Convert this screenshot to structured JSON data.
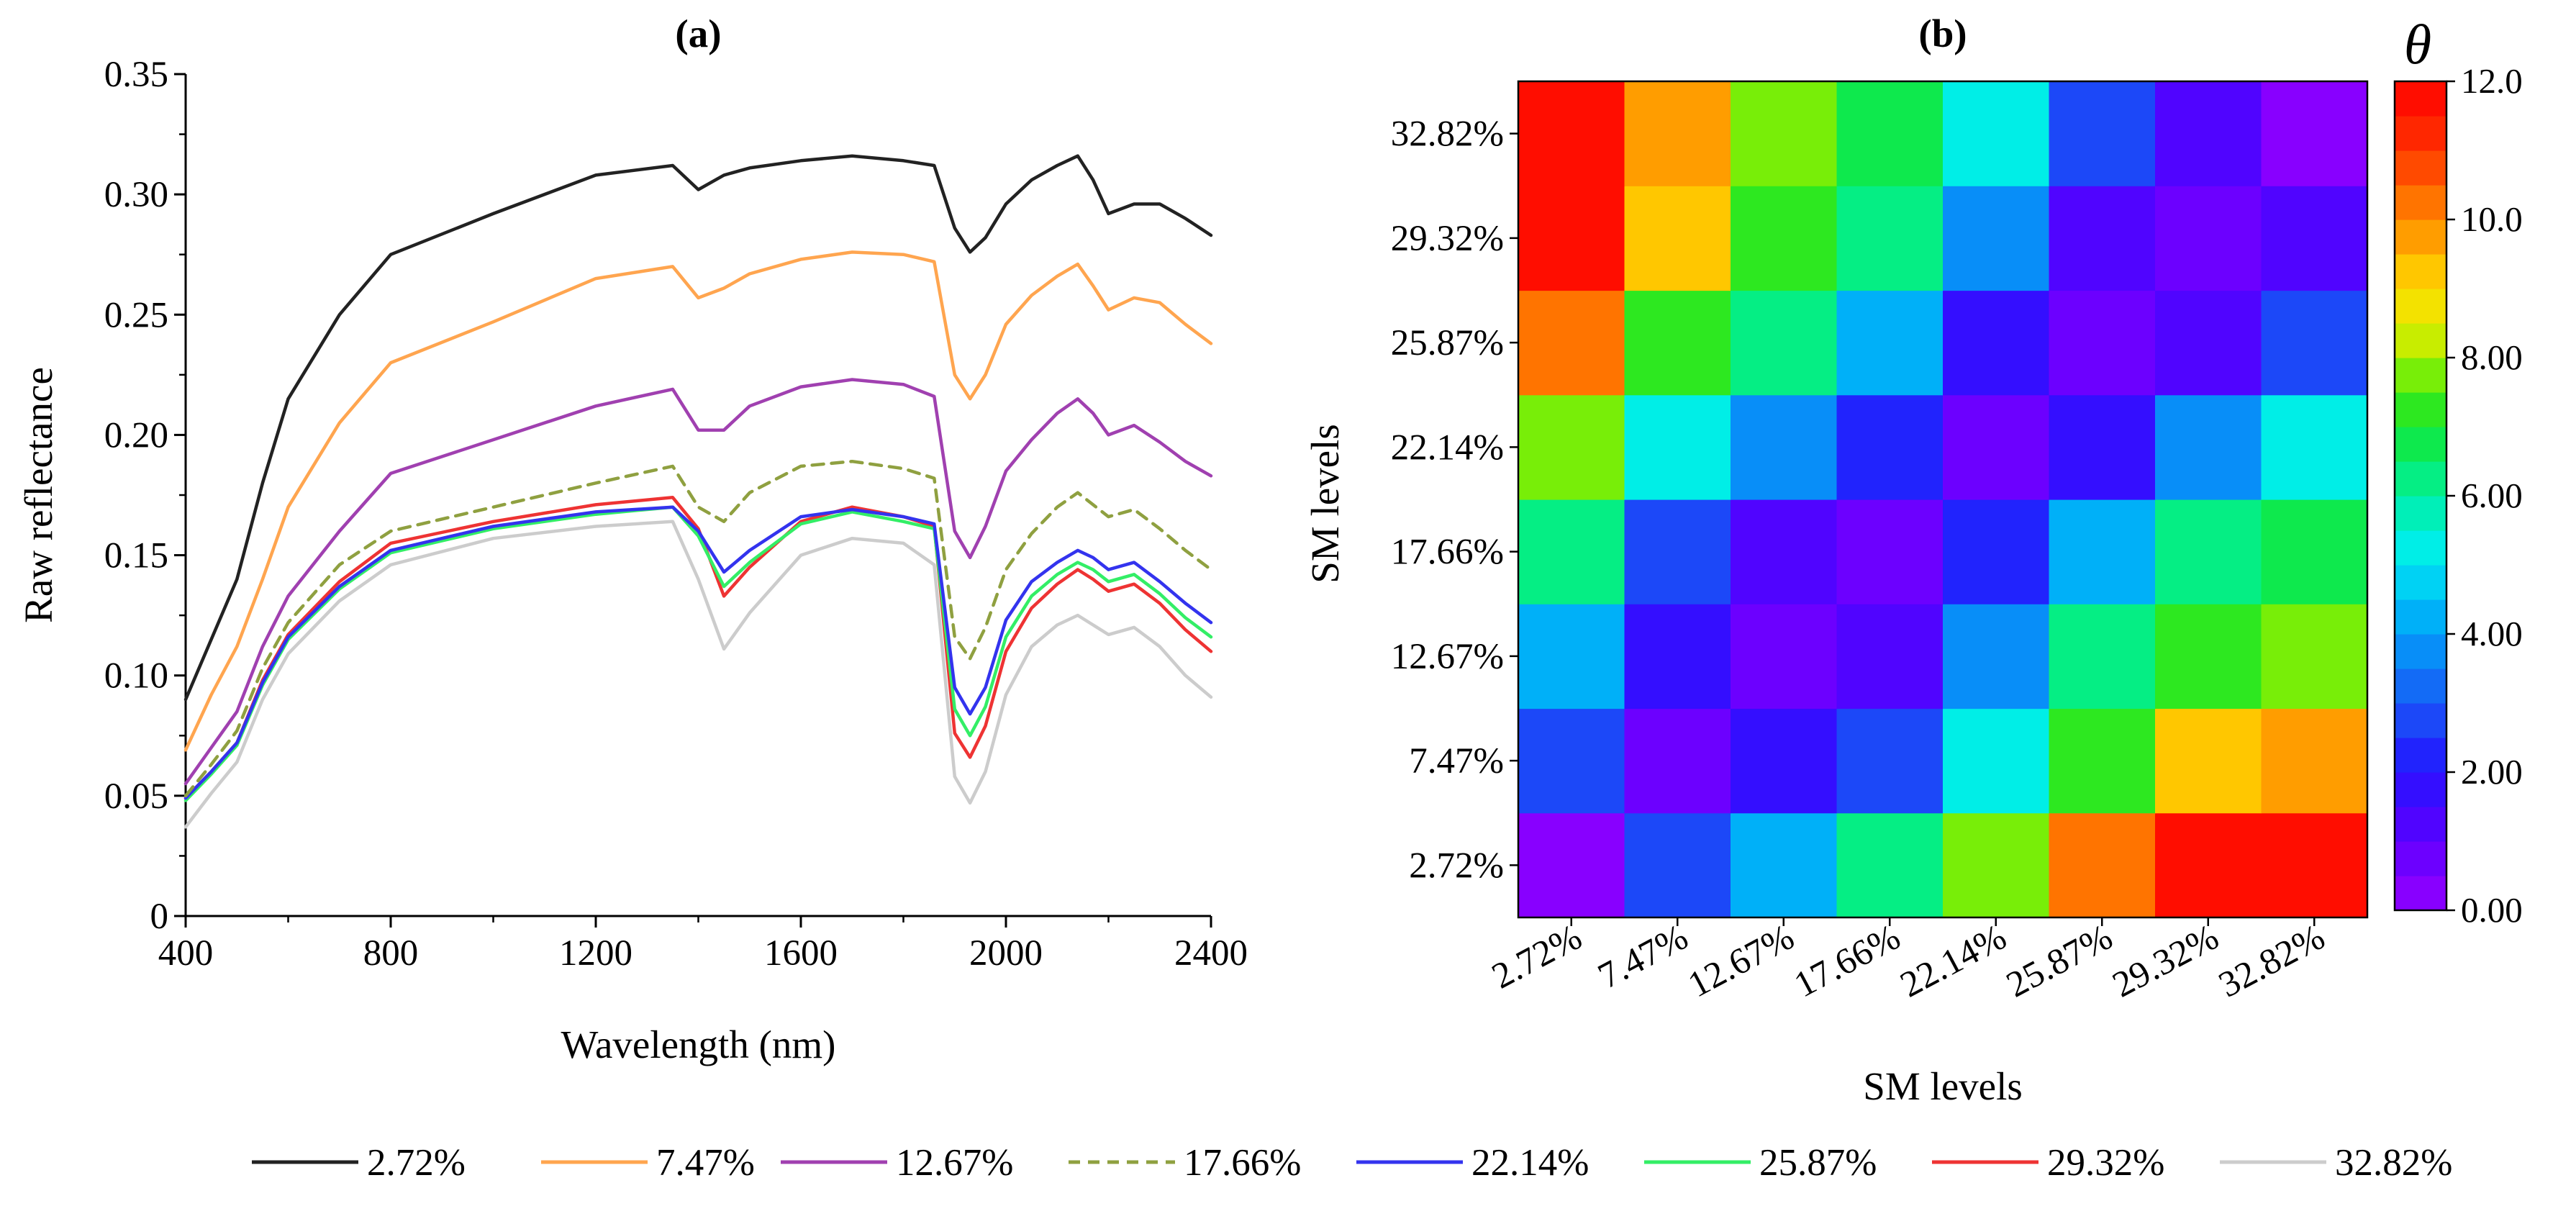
{
  "chart_data": [
    {
      "type": "line",
      "panel_label": "(a)",
      "xlabel": "Wavelength (nm)",
      "ylabel": "Raw reflectance",
      "xlim": [
        400,
        2400
      ],
      "ylim": [
        0,
        0.35
      ],
      "xticks": [
        400,
        800,
        1200,
        1600,
        2000,
        2400
      ],
      "xtick_labels": [
        "400",
        "800",
        "1200",
        "1600",
        "2000",
        "2400"
      ],
      "yticks": [
        0,
        0.05,
        0.1,
        0.15,
        0.2,
        0.25,
        0.3,
        0.35
      ],
      "ytick_labels": [
        "0",
        "0.05",
        "0.10",
        "0.15",
        "0.20",
        "0.25",
        "0.30",
        "0.35"
      ],
      "x": [
        400,
        450,
        500,
        550,
        600,
        700,
        800,
        1000,
        1200,
        1350,
        1400,
        1450,
        1500,
        1600,
        1700,
        1800,
        1860,
        1900,
        1930,
        1960,
        2000,
        2050,
        2100,
        2140,
        2170,
        2200,
        2250,
        2300,
        2350,
        2400
      ],
      "series": [
        {
          "name": "2.72%",
          "color": "#222222",
          "dash": false,
          "values": [
            0.09,
            0.115,
            0.14,
            0.18,
            0.215,
            0.25,
            0.275,
            0.292,
            0.308,
            0.312,
            0.302,
            0.308,
            0.311,
            0.314,
            0.316,
            0.314,
            0.312,
            0.286,
            0.276,
            0.282,
            0.296,
            0.306,
            0.312,
            0.316,
            0.306,
            0.292,
            0.296,
            0.296,
            0.29,
            0.283
          ]
        },
        {
          "name": "7.47%",
          "color": "#ffa54f",
          "dash": false,
          "values": [
            0.069,
            0.092,
            0.112,
            0.14,
            0.17,
            0.205,
            0.23,
            0.247,
            0.265,
            0.27,
            0.257,
            0.261,
            0.267,
            0.273,
            0.276,
            0.275,
            0.272,
            0.225,
            0.215,
            0.225,
            0.246,
            0.258,
            0.266,
            0.271,
            0.262,
            0.252,
            0.257,
            0.255,
            0.246,
            0.238
          ]
        },
        {
          "name": "12.67%",
          "color": "#a040b0",
          "dash": false,
          "values": [
            0.055,
            0.07,
            0.085,
            0.112,
            0.133,
            0.16,
            0.184,
            0.198,
            0.212,
            0.219,
            0.202,
            0.202,
            0.212,
            0.22,
            0.223,
            0.221,
            0.216,
            0.16,
            0.149,
            0.162,
            0.185,
            0.198,
            0.209,
            0.215,
            0.209,
            0.2,
            0.204,
            0.197,
            0.189,
            0.183
          ]
        },
        {
          "name": "17.66%",
          "color": "#8fa040",
          "dash": true,
          "values": [
            0.05,
            0.063,
            0.077,
            0.103,
            0.122,
            0.146,
            0.16,
            0.17,
            0.18,
            0.187,
            0.17,
            0.164,
            0.176,
            0.187,
            0.189,
            0.186,
            0.182,
            0.116,
            0.107,
            0.12,
            0.144,
            0.159,
            0.17,
            0.176,
            0.171,
            0.166,
            0.169,
            0.161,
            0.152,
            0.144
          ]
        },
        {
          "name": "22.14%",
          "color": "#3333ee",
          "dash": false,
          "values": [
            0.049,
            0.06,
            0.072,
            0.097,
            0.116,
            0.137,
            0.152,
            0.162,
            0.168,
            0.17,
            0.16,
            0.143,
            0.152,
            0.166,
            0.169,
            0.166,
            0.163,
            0.095,
            0.084,
            0.095,
            0.123,
            0.139,
            0.147,
            0.152,
            0.149,
            0.144,
            0.147,
            0.139,
            0.13,
            0.122
          ]
        },
        {
          "name": "25.87%",
          "color": "#33ee66",
          "dash": false,
          "values": [
            0.048,
            0.059,
            0.071,
            0.096,
            0.115,
            0.136,
            0.151,
            0.161,
            0.167,
            0.17,
            0.158,
            0.137,
            0.147,
            0.163,
            0.168,
            0.164,
            0.161,
            0.086,
            0.075,
            0.087,
            0.116,
            0.133,
            0.142,
            0.147,
            0.144,
            0.139,
            0.142,
            0.134,
            0.124,
            0.116
          ]
        },
        {
          "name": "29.32%",
          "color": "#ee3333",
          "dash": false,
          "values": [
            0.049,
            0.06,
            0.072,
            0.098,
            0.117,
            0.139,
            0.155,
            0.164,
            0.171,
            0.174,
            0.161,
            0.133,
            0.145,
            0.164,
            0.17,
            0.166,
            0.162,
            0.076,
            0.066,
            0.079,
            0.11,
            0.128,
            0.138,
            0.144,
            0.14,
            0.135,
            0.138,
            0.13,
            0.119,
            0.11
          ]
        },
        {
          "name": "32.82%",
          "color": "#cccccc",
          "dash": false,
          "values": [
            0.037,
            0.051,
            0.064,
            0.09,
            0.109,
            0.131,
            0.146,
            0.157,
            0.162,
            0.164,
            0.14,
            0.111,
            0.126,
            0.15,
            0.157,
            0.155,
            0.146,
            0.058,
            0.047,
            0.06,
            0.092,
            0.112,
            0.121,
            0.125,
            0.121,
            0.117,
            0.12,
            0.112,
            0.1,
            0.091
          ]
        }
      ]
    },
    {
      "type": "heatmap",
      "panel_label": "(b)",
      "xlabel": "SM levels",
      "ylabel": "SM levels",
      "x_categories": [
        "2.72%",
        "7.47%",
        "12.67%",
        "17.66%",
        "22.14%",
        "25.87%",
        "29.32%",
        "32.82%"
      ],
      "y_categories": [
        "2.72%",
        "7.47%",
        "12.67%",
        "17.66%",
        "22.14%",
        "25.87%",
        "29.32%",
        "32.82%"
      ],
      "values_note": "rows listed bottom (2.72%) to top (32.82%), columns left (2.72%) to right (32.82%)",
      "values": [
        [
          0.3,
          2.5,
          4.3,
          6.0,
          7.9,
          10.2,
          11.6,
          11.9
        ],
        [
          2.5,
          0.7,
          1.5,
          2.8,
          5.3,
          7.0,
          9.1,
          9.8
        ],
        [
          4.3,
          1.5,
          0.8,
          1.4,
          3.6,
          6.0,
          7.2,
          7.8
        ],
        [
          6.0,
          2.8,
          1.4,
          0.6,
          2.2,
          4.0,
          6.0,
          6.9
        ],
        [
          7.9,
          5.3,
          3.6,
          2.2,
          0.8,
          1.8,
          3.6,
          5.0
        ],
        [
          10.2,
          7.0,
          6.0,
          4.0,
          1.8,
          0.7,
          1.3,
          2.7
        ],
        [
          11.6,
          9.1,
          7.2,
          6.0,
          3.6,
          1.3,
          0.6,
          1.1
        ],
        [
          11.9,
          9.8,
          7.8,
          6.9,
          5.0,
          2.7,
          1.1,
          0.4
        ]
      ],
      "colorbar": {
        "title": "θ",
        "range": [
          0,
          12
        ],
        "ticks": [
          0,
          2,
          4,
          6,
          8,
          10,
          12
        ],
        "tick_labels": [
          "0.00",
          "2.00",
          "4.00",
          "6.00",
          "8.00",
          "10.0",
          "12.0"
        ],
        "levels": 24
      }
    }
  ]
}
